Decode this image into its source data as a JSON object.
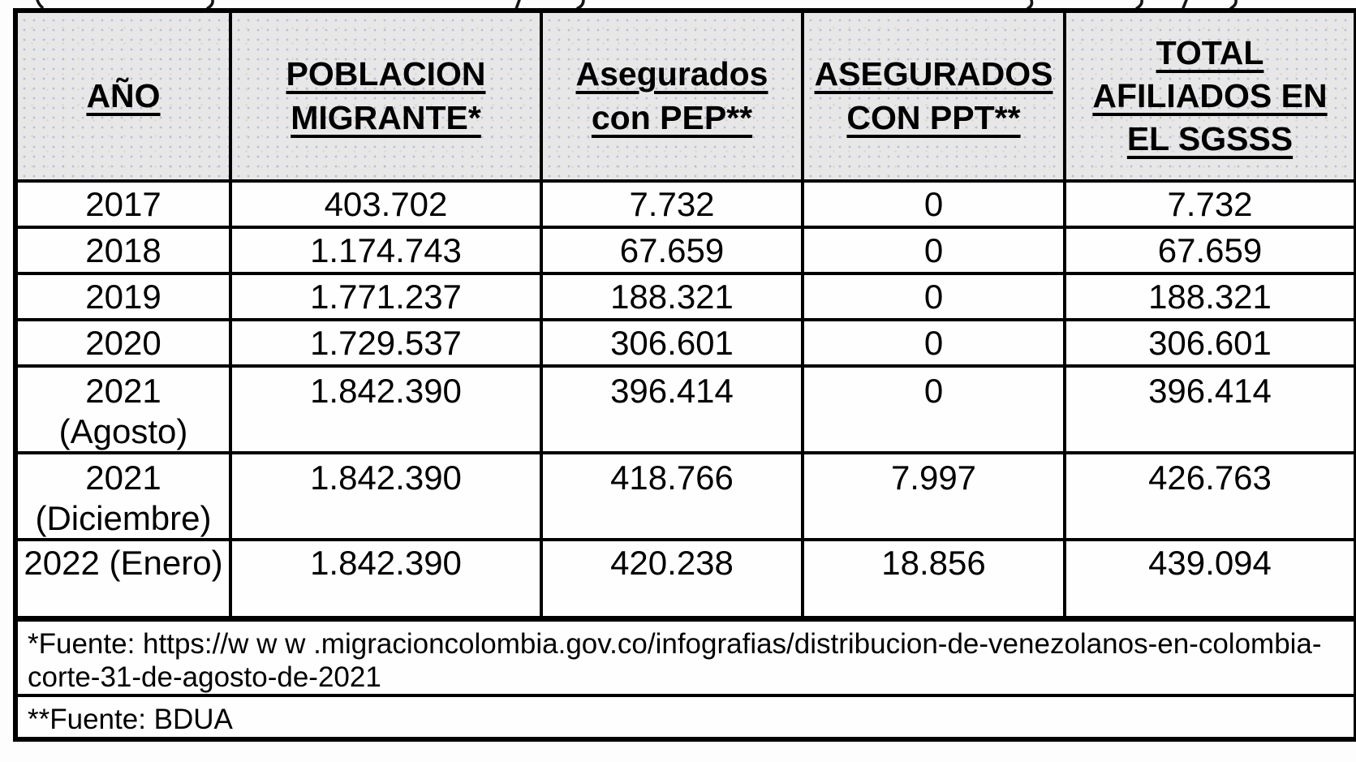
{
  "page": {
    "background": "#fdfdfd",
    "border_color": "#000000",
    "header_bg": "#e7e7e7",
    "text_color": "#000000"
  },
  "table": {
    "header": {
      "columns": [
        {
          "id": "ano",
          "lines": [
            "AÑO"
          ]
        },
        {
          "id": "poblacion-migrante",
          "lines": [
            "POBLACION",
            "MIGRANTE*"
          ]
        },
        {
          "id": "asegurados-pep",
          "lines": [
            "Asegurados",
            "con PEP**"
          ]
        },
        {
          "id": "asegurados-ppt",
          "lines": [
            "ASEGURADOS",
            "CON PPT**"
          ]
        },
        {
          "id": "total-afiliados",
          "lines": [
            "TOTAL",
            "AFILIADOS EN",
            "EL SGSSS"
          ]
        }
      ]
    },
    "rows": [
      {
        "year": [
          "2017"
        ],
        "values": [
          "403.702",
          "7.732",
          "0",
          "7.732"
        ]
      },
      {
        "year": [
          "2018"
        ],
        "values": [
          "1.174.743",
          "67.659",
          "0",
          "67.659"
        ]
      },
      {
        "year": [
          "2019"
        ],
        "values": [
          "1.771.237",
          "188.321",
          "0",
          "188.321"
        ]
      },
      {
        "year": [
          "2020"
        ],
        "values": [
          "1.729.537",
          "306.601",
          "0",
          "306.601"
        ]
      },
      {
        "year": [
          "2021",
          "(Agosto)"
        ],
        "values": [
          "1.842.390",
          "396.414",
          "0",
          "396.414"
        ]
      },
      {
        "year": [
          "2021",
          "(Diciembre)"
        ],
        "values": [
          "1.842.390",
          "418.766",
          "7.997",
          "426.763"
        ]
      },
      {
        "year": [
          "2022 (Enero)"
        ],
        "values": [
          "1.842.390",
          "420.238",
          "18.856",
          "439.094"
        ]
      }
    ],
    "footnotes": [
      {
        "lines": [
          "*Fuente: https://w w w .migracioncolombia.gov.co/infografias/distribucion-de-venezolanos-en-colombia-",
          "corte-31-de-agosto-de-2021"
        ]
      },
      {
        "lines": [
          "**Fuente: BDUA"
        ]
      }
    ]
  }
}
